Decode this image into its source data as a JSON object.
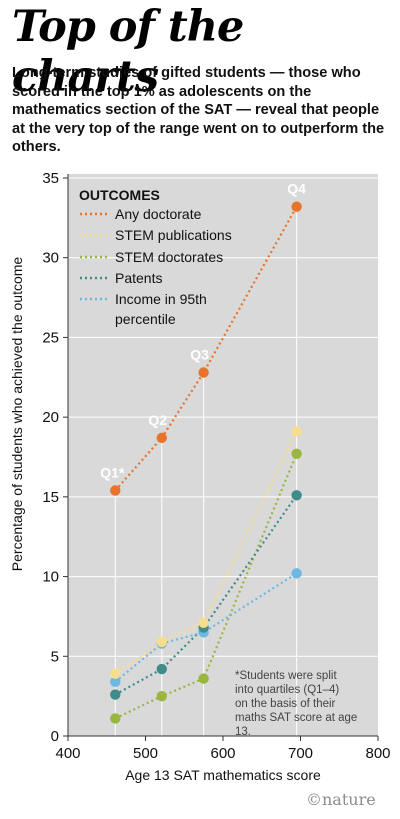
{
  "title": "Top of the charts",
  "subtitle": "Long-term studies of gifted students — those who scored in the top 1% as adolescents on the mathematics section of the SAT — reveal that people at the very top of the range went on to outperform the others.",
  "credit": "©nature",
  "chart_data": {
    "type": "line",
    "xlabel": "Age 13 SAT mathematics score",
    "ylabel": "Percentage of students who achieved the outcome",
    "xlim": [
      400,
      800
    ],
    "ylim": [
      0,
      35
    ],
    "xticks": [
      400,
      500,
      600,
      700,
      800
    ],
    "yticks": [
      0,
      5,
      10,
      15,
      20,
      25,
      30,
      35
    ],
    "grid": "horizontal",
    "legend_title": "OUTCOMES",
    "legend_position": "top-left",
    "x": [
      461,
      521,
      575,
      695
    ],
    "point_labels": [
      "Q1*",
      "Q2",
      "Q3",
      "Q4"
    ],
    "series": [
      {
        "name": "Any doctorate",
        "color": "#e8742b",
        "values": [
          15.4,
          18.7,
          22.8,
          33.2
        ]
      },
      {
        "name": "STEM publications",
        "color": "#f7de8c",
        "values": [
          3.9,
          5.9,
          7.1,
          19.1
        ]
      },
      {
        "name": "STEM doctorates",
        "color": "#99b63e",
        "values": [
          1.1,
          2.5,
          3.6,
          17.7
        ]
      },
      {
        "name": "Patents",
        "color": "#3f8c8b",
        "values": [
          2.6,
          4.2,
          6.8,
          15.1
        ]
      },
      {
        "name": "Income in 95th percentile",
        "color": "#6db8e2",
        "values": [
          3.4,
          5.8,
          6.5,
          10.2
        ]
      }
    ],
    "annotation": "*Students were split into quartiles (Q1–4) on the basis of their maths SAT score at age 13."
  }
}
